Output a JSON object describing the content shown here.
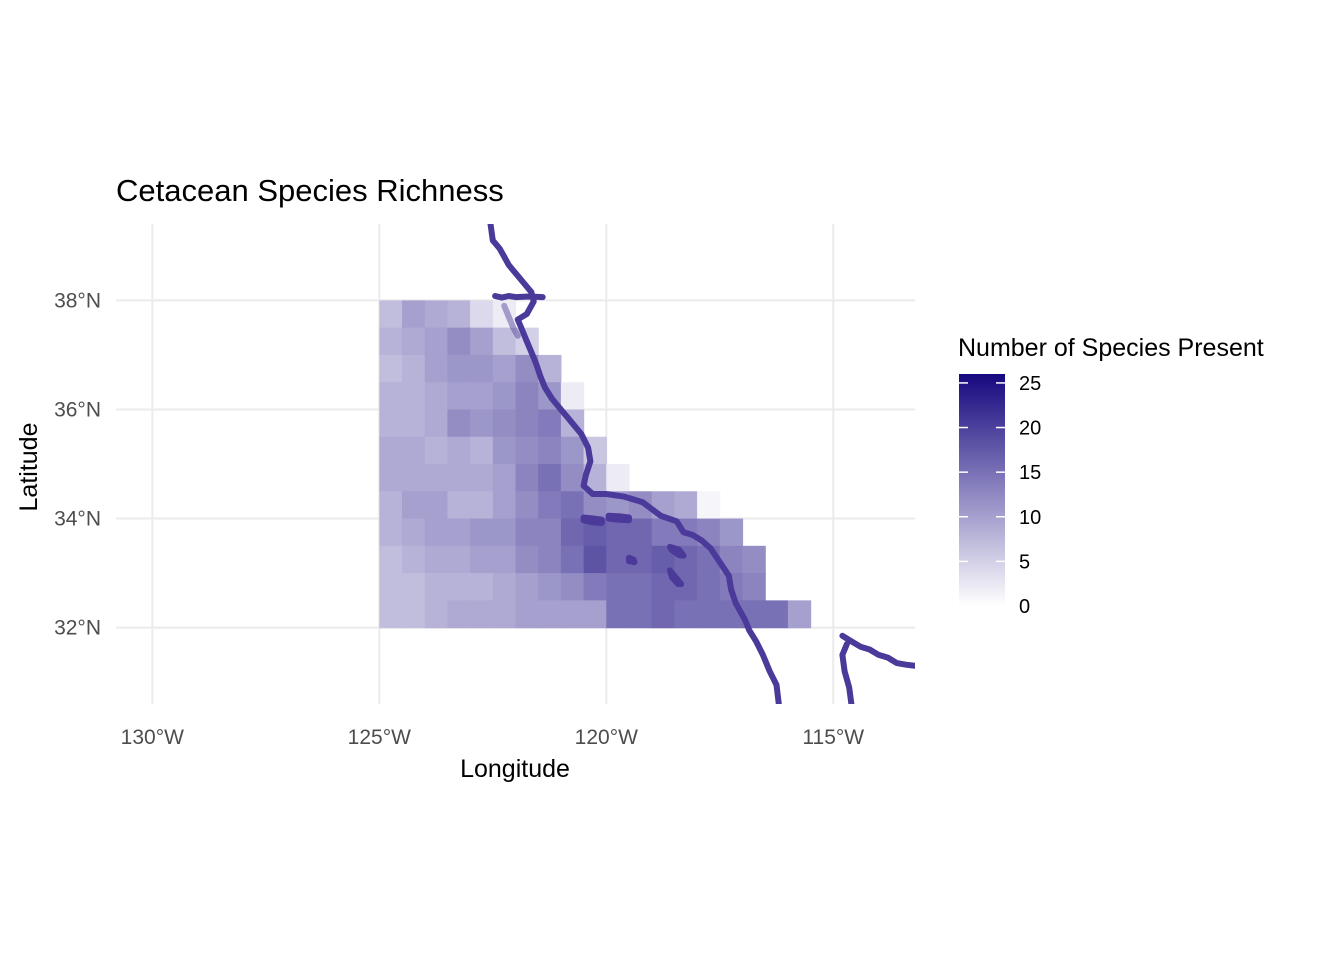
{
  "title": "Cetacean Species Richness",
  "axes": {
    "x": {
      "title": "Longitude",
      "ticks": [
        "130°W",
        "125°W",
        "120°W",
        "115°W"
      ],
      "tick_values": [
        -130,
        -125,
        -120,
        -115
      ],
      "range": [
        -130.8,
        -113.2
      ]
    },
    "y": {
      "title": "Latitude",
      "ticks": [
        "38°N",
        "36°N",
        "34°N",
        "32°N"
      ],
      "tick_values": [
        38,
        36,
        34,
        32
      ],
      "range": [
        30.6,
        39.4
      ]
    },
    "grid": true
  },
  "legend": {
    "title": "Number of Species Present",
    "labels": [
      "25",
      "20",
      "15",
      "10",
      "5",
      "0"
    ],
    "breaks": [
      25,
      20,
      15,
      10,
      5,
      0
    ],
    "limits": [
      0,
      26
    ],
    "low_color": "#ffffff",
    "high_color": "#16087f",
    "placement": "right"
  },
  "colors": {
    "coastline": "#4b3a99",
    "background": "#ffffff",
    "grid": "#ebebeb"
  },
  "chart_data": {
    "type": "heatmap",
    "title": "Cetacean Species Richness",
    "xlabel": "Longitude",
    "ylabel": "Latitude",
    "cell_size_deg": 0.5,
    "cell_anchor": "lower-left corner (lon, lat) of each 0.5° cell",
    "xlim": [
      -130.8,
      -113.2
    ],
    "ylim": [
      30.6,
      39.4
    ],
    "value_name": "Number of Species Present",
    "rows": [
      {
        "lat": 37.5,
        "lon_start": -125.0,
        "values": [
          7,
          10,
          9,
          8,
          4,
          2
        ]
      },
      {
        "lat": 37.0,
        "lon_start": -125.0,
        "values": [
          8,
          9,
          10,
          12,
          10,
          7,
          5
        ]
      },
      {
        "lat": 36.5,
        "lon_start": -125.0,
        "values": [
          7,
          8,
          10,
          11,
          11,
          10,
          12,
          8
        ]
      },
      {
        "lat": 36.0,
        "lon_start": -125.0,
        "values": [
          8,
          8,
          9,
          10,
          10,
          11,
          13,
          11,
          2
        ]
      },
      {
        "lat": 35.5,
        "lon_start": -125.0,
        "values": [
          8,
          8,
          9,
          12,
          11,
          12,
          13,
          14,
          8
        ]
      },
      {
        "lat": 35.0,
        "lon_start": -125.0,
        "values": [
          9,
          9,
          8,
          9,
          8,
          11,
          12,
          13,
          11,
          6
        ]
      },
      {
        "lat": 34.5,
        "lon_start": -125.0,
        "values": [
          9,
          9,
          9,
          9,
          9,
          10,
          13,
          15,
          12,
          8,
          2
        ]
      },
      {
        "lat": 34.0,
        "lon_start": -125.0,
        "values": [
          8,
          10,
          10,
          8,
          8,
          10,
          12,
          14,
          15,
          12,
          11,
          12,
          10,
          9,
          1
        ]
      },
      {
        "lat": 33.5,
        "lon_start": -125.0,
        "values": [
          8,
          9,
          10,
          10,
          11,
          11,
          13,
          13,
          16,
          17,
          16,
          16,
          14,
          14,
          13,
          11
        ]
      },
      {
        "lat": 33.0,
        "lon_start": -125.0,
        "values": [
          7,
          8,
          9,
          9,
          10,
          10,
          12,
          13,
          15,
          18,
          16,
          16,
          17,
          16,
          15,
          13,
          12
        ]
      },
      {
        "lat": 32.5,
        "lon_start": -125.0,
        "values": [
          7,
          7,
          8,
          8,
          8,
          9,
          10,
          11,
          12,
          14,
          15,
          15,
          16,
          16,
          15,
          14,
          13
        ]
      },
      {
        "lat": 32.0,
        "lon_start": -125.0,
        "values": [
          7,
          7,
          8,
          9,
          9,
          9,
          10,
          10,
          10,
          10,
          15,
          15,
          16,
          15,
          15,
          15,
          15,
          15,
          10
        ]
      }
    ],
    "features": {
      "coastline": [
        [
          -122.55,
          39.4
        ],
        [
          -122.5,
          39.1
        ],
        [
          -122.35,
          38.95
        ],
        [
          -122.25,
          38.8
        ],
        [
          -122.15,
          38.65
        ],
        [
          -122.05,
          38.55
        ],
        [
          -121.95,
          38.45
        ],
        [
          -121.8,
          38.3
        ],
        [
          -121.65,
          38.15
        ],
        [
          -121.6,
          37.98
        ],
        [
          -121.75,
          37.75
        ],
        [
          -121.95,
          37.65
        ],
        [
          -121.85,
          37.45
        ],
        [
          -121.75,
          37.25
        ],
        [
          -121.65,
          37.05
        ],
        [
          -121.55,
          36.85
        ],
        [
          -121.45,
          36.6
        ],
        [
          -121.35,
          36.4
        ],
        [
          -121.2,
          36.2
        ],
        [
          -121.0,
          36.0
        ],
        [
          -120.85,
          35.85
        ],
        [
          -120.7,
          35.7
        ],
        [
          -120.55,
          35.55
        ],
        [
          -120.4,
          35.3
        ],
        [
          -120.35,
          35.05
        ],
        [
          -120.45,
          34.8
        ],
        [
          -120.5,
          34.6
        ],
        [
          -120.3,
          34.45
        ],
        [
          -120.0,
          34.45
        ],
        [
          -119.6,
          34.4
        ],
        [
          -119.2,
          34.3
        ],
        [
          -118.8,
          34.05
        ],
        [
          -118.45,
          33.95
        ],
        [
          -118.3,
          33.75
        ],
        [
          -118.1,
          33.7
        ],
        [
          -117.9,
          33.6
        ],
        [
          -117.7,
          33.45
        ],
        [
          -117.5,
          33.2
        ],
        [
          -117.3,
          32.95
        ],
        [
          -117.25,
          32.7
        ],
        [
          -117.15,
          32.45
        ],
        [
          -116.95,
          32.15
        ],
        [
          -116.85,
          31.95
        ],
        [
          -116.7,
          31.75
        ],
        [
          -116.55,
          31.5
        ],
        [
          -116.4,
          31.2
        ],
        [
          -116.25,
          30.95
        ],
        [
          -116.2,
          30.6
        ]
      ],
      "coastline_west_segment": [
        [
          -122.45,
          38.08
        ],
        [
          -122.3,
          38.05
        ],
        [
          -122.15,
          38.08
        ],
        [
          -122.0,
          38.06
        ],
        [
          -121.7,
          38.07
        ],
        [
          -121.4,
          38.06
        ]
      ],
      "san_francisco_bay": [
        [
          -122.25,
          37.9
        ],
        [
          -122.15,
          37.7
        ],
        [
          -122.05,
          37.5
        ],
        [
          -121.95,
          37.35
        ]
      ],
      "gulf_coast": [
        [
          -114.8,
          31.85
        ],
        [
          -114.6,
          31.75
        ],
        [
          -114.4,
          31.65
        ],
        [
          -114.2,
          31.6
        ],
        [
          -114.0,
          31.5
        ],
        [
          -113.8,
          31.45
        ],
        [
          -113.6,
          31.35
        ],
        [
          -113.4,
          31.32
        ],
        [
          -113.2,
          31.3
        ]
      ],
      "gulf_coast_inner": [
        [
          -114.7,
          31.7
        ],
        [
          -114.8,
          31.5
        ],
        [
          -114.75,
          31.2
        ],
        [
          -114.65,
          30.9
        ],
        [
          -114.6,
          30.6
        ]
      ],
      "islands": [
        [
          [
            -120.5,
            34.02
          ],
          [
            -120.3,
            34.0
          ],
          [
            -120.1,
            33.98
          ],
          [
            -120.1,
            33.92
          ],
          [
            -120.3,
            33.93
          ],
          [
            -120.5,
            33.97
          ]
        ],
        [
          [
            -119.95,
            34.05
          ],
          [
            -119.7,
            34.04
          ],
          [
            -119.5,
            34.02
          ],
          [
            -119.5,
            33.97
          ],
          [
            -119.75,
            33.98
          ],
          [
            -119.95,
            34.0
          ]
        ],
        [
          [
            -119.5,
            33.28
          ],
          [
            -119.4,
            33.25
          ],
          [
            -119.38,
            33.2
          ],
          [
            -119.5,
            33.22
          ]
        ],
        [
          [
            -118.6,
            33.48
          ],
          [
            -118.4,
            33.43
          ],
          [
            -118.3,
            33.32
          ],
          [
            -118.4,
            33.33
          ],
          [
            -118.55,
            33.42
          ]
        ],
        [
          [
            -118.6,
            33.05
          ],
          [
            -118.45,
            32.9
          ],
          [
            -118.35,
            32.8
          ],
          [
            -118.42,
            32.8
          ],
          [
            -118.55,
            32.92
          ]
        ]
      ]
    }
  }
}
